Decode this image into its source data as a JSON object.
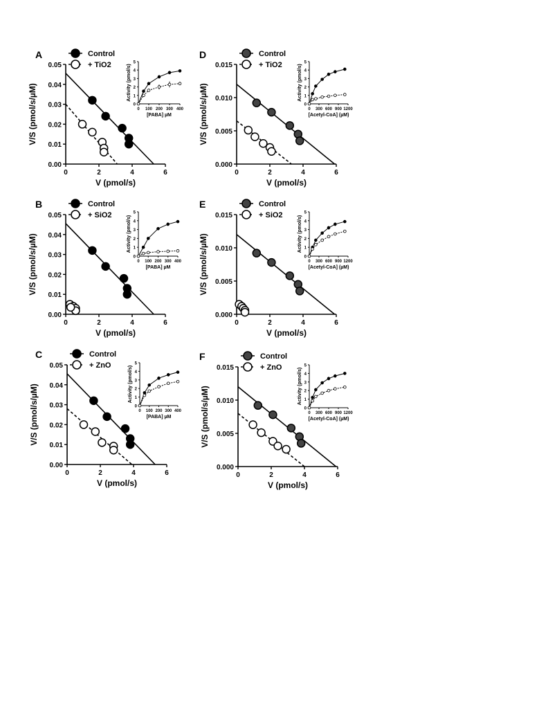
{
  "chart_data": [
    {
      "panel": "A",
      "type": "scatter",
      "xlabel": "V (pmol/s)",
      "ylabel": "V/S (pmol/s/µM)",
      "xlim": [
        0,
        6
      ],
      "ylim": [
        0,
        0.05
      ],
      "xticks": [
        "0",
        "2",
        "4",
        "6"
      ],
      "yticks": [
        "0.00",
        "0.01",
        "0.02",
        "0.03",
        "0.04",
        "0.05"
      ],
      "legend": [
        "Control",
        "+ TiO2"
      ],
      "marker_color": "#000000",
      "series": [
        {
          "name": "Control",
          "points": [
            [
              1.6,
              0.032
            ],
            [
              2.4,
              0.024
            ],
            [
              3.4,
              0.018
            ],
            [
              3.8,
              0.013
            ],
            [
              3.8,
              0.01
            ]
          ],
          "line": [
            [
              0,
              0.0455
            ],
            [
              5.3,
              0
            ]
          ],
          "dashed": false
        },
        {
          "name": "+ TiO2",
          "points": [
            [
              1.0,
              0.02
            ],
            [
              1.6,
              0.016
            ],
            [
              2.2,
              0.011
            ],
            [
              2.3,
              0.008
            ],
            [
              2.3,
              0.006
            ]
          ],
          "line": [
            [
              0,
              0.03
            ],
            [
              3.1,
              0
            ]
          ],
          "dashed": true
        }
      ],
      "inset": {
        "xlabel": "[PABA] µM",
        "ylabel": "Activity (pmol/s)",
        "xlim": [
          0,
          400
        ],
        "ylim": [
          0,
          5
        ],
        "xticks": [
          "0",
          "100",
          "200",
          "300",
          "400"
        ],
        "yticks": [
          "0",
          "1",
          "2",
          "3",
          "4",
          "5"
        ],
        "series": [
          {
            "x": [
              0,
              50,
              100,
              200,
              300,
              400
            ],
            "y": [
              0,
              1.5,
              2.4,
              3.2,
              3.7,
              3.9
            ],
            "filled": true,
            "errors": [
              0,
              0.1,
              0.15,
              0.2,
              0.2,
              0.15
            ]
          },
          {
            "x": [
              0,
              50,
              100,
              200,
              300,
              400
            ],
            "y": [
              0,
              1.0,
              1.6,
              2.0,
              2.3,
              2.4
            ],
            "filled": false,
            "errors": [
              0,
              0.1,
              0.15,
              0.3,
              0.35,
              0.2
            ]
          }
        ]
      }
    },
    {
      "panel": "B",
      "type": "scatter",
      "xlabel": "V (pmol/s)",
      "ylabel": "V/S (pmol/s/µM)",
      "xlim": [
        0,
        6
      ],
      "ylim": [
        0,
        0.05
      ],
      "xticks": [
        "0",
        "2",
        "4",
        "6"
      ],
      "yticks": [
        "0.00",
        "0.01",
        "0.02",
        "0.03",
        "0.04",
        "0.05"
      ],
      "legend": [
        "Control",
        "+ SiO2"
      ],
      "marker_color": "#000000",
      "series": [
        {
          "name": "Control",
          "points": [
            [
              1.6,
              0.032
            ],
            [
              2.4,
              0.024
            ],
            [
              3.5,
              0.018
            ],
            [
              3.7,
              0.013
            ],
            [
              3.7,
              0.01
            ]
          ],
          "line": [
            [
              0,
              0.0455
            ],
            [
              5.3,
              0
            ]
          ],
          "dashed": false
        },
        {
          "name": "+ SiO2",
          "points": [
            [
              0.25,
              0.005
            ],
            [
              0.45,
              0.004
            ],
            [
              0.6,
              0.003
            ],
            [
              0.6,
              0.0018
            ],
            [
              0.3,
              0.0035
            ]
          ],
          "line": null,
          "dashed": true
        }
      ],
      "inset": {
        "xlabel": "[PABA] µM",
        "ylabel": "Activity (pmol/s)",
        "xlim": [
          0,
          400
        ],
        "ylim": [
          0,
          5
        ],
        "xticks": [
          "0",
          "100",
          "200",
          "300",
          "400"
        ],
        "yticks": [
          "0",
          "1",
          "2",
          "3",
          "4",
          "5"
        ],
        "series": [
          {
            "x": [
              0,
              50,
              100,
              200,
              300,
              400
            ],
            "y": [
              0,
              1.0,
              2.0,
              3.1,
              3.6,
              3.9
            ],
            "filled": true,
            "errors": [
              0,
              0.1,
              0.1,
              0.15,
              0.2,
              0.15
            ]
          },
          {
            "x": [
              0,
              50,
              100,
              200,
              300,
              400
            ],
            "y": [
              0,
              0.3,
              0.4,
              0.5,
              0.55,
              0.6
            ],
            "filled": false,
            "errors": [
              0,
              0.05,
              0.05,
              0.05,
              0.05,
              0.05
            ]
          }
        ]
      }
    },
    {
      "panel": "C",
      "type": "scatter",
      "xlabel": "V (pmol/s)",
      "ylabel": "V/S (pmol/s/µM)",
      "xlim": [
        0,
        6
      ],
      "ylim": [
        0,
        0.05
      ],
      "xticks": [
        "0",
        "2",
        "4",
        "6"
      ],
      "yticks": [
        "0.00",
        "0.01",
        "0.02",
        "0.03",
        "0.04",
        "0.05"
      ],
      "legend": [
        "Control",
        "+ ZnO"
      ],
      "marker_color": "#000000",
      "series": [
        {
          "name": "Control",
          "points": [
            [
              1.6,
              0.032
            ],
            [
              2.4,
              0.024
            ],
            [
              3.5,
              0.018
            ],
            [
              3.8,
              0.013
            ],
            [
              3.8,
              0.01
            ]
          ],
          "line": [
            [
              0,
              0.0455
            ],
            [
              5.3,
              0
            ]
          ],
          "dashed": false
        },
        {
          "name": "+ ZnO",
          "points": [
            [
              1.0,
              0.02
            ],
            [
              1.7,
              0.0165
            ],
            [
              2.1,
              0.011
            ],
            [
              2.8,
              0.0092
            ],
            [
              2.8,
              0.0072
            ]
          ],
          "line": [
            [
              0,
              0.028
            ],
            [
              3.9,
              0
            ]
          ],
          "dashed": true
        }
      ],
      "inset": {
        "xlabel": "[PABA] µM",
        "ylabel": "Activity (pmol/s)",
        "xlim": [
          0,
          400
        ],
        "ylim": [
          0,
          5
        ],
        "xticks": [
          "0",
          "100",
          "200",
          "300",
          "400"
        ],
        "yticks": [
          "0",
          "1",
          "2",
          "3",
          "4",
          "5"
        ],
        "series": [
          {
            "x": [
              0,
              50,
              100,
              200,
              300,
              400
            ],
            "y": [
              0,
              1.5,
              2.4,
              3.2,
              3.6,
              3.9
            ],
            "filled": true,
            "errors": [
              0,
              0.1,
              0.15,
              0.2,
              0.2,
              0.15
            ]
          },
          {
            "x": [
              0,
              50,
              100,
              200,
              300,
              400
            ],
            "y": [
              0,
              1.2,
              1.7,
              2.2,
              2.6,
              2.8
            ],
            "filled": false,
            "errors": [
              0,
              0.1,
              0.1,
              0.15,
              0.15,
              0.1
            ]
          }
        ]
      }
    },
    {
      "panel": "D",
      "type": "scatter",
      "xlabel": "V (pmol/s)",
      "ylabel": "V/S (pmol/s/µM)",
      "xlim": [
        0,
        6
      ],
      "ylim": [
        0,
        0.015
      ],
      "xticks": [
        "0",
        "2",
        "4",
        "6"
      ],
      "yticks": [
        "0.000",
        "0.005",
        "0.010",
        "0.015"
      ],
      "legend": [
        "Control",
        "+ TiO2"
      ],
      "marker_color": "#444444",
      "series": [
        {
          "name": "Control",
          "points": [
            [
              1.2,
              0.0092
            ],
            [
              2.1,
              0.0078
            ],
            [
              3.2,
              0.0058
            ],
            [
              3.7,
              0.0045
            ],
            [
              3.8,
              0.0035
            ]
          ],
          "line": [
            [
              0,
              0.012
            ],
            [
              5.9,
              0
            ]
          ],
          "dashed": false
        },
        {
          "name": "+ TiO2",
          "points": [
            [
              0.7,
              0.0051
            ],
            [
              1.1,
              0.0041
            ],
            [
              1.6,
              0.0031
            ],
            [
              2.0,
              0.0025
            ],
            [
              2.1,
              0.0019
            ]
          ],
          "line": [
            [
              0,
              0.0065
            ],
            [
              3.3,
              0
            ]
          ],
          "dashed": true
        }
      ],
      "inset": {
        "xlabel": "[Acetyl-CoA] (µM)",
        "ylabel": "Activity (pmol/s)",
        "xlim": [
          0,
          1200
        ],
        "ylim": [
          0,
          5
        ],
        "xticks": [
          "0",
          "300",
          "600",
          "900",
          "1200"
        ],
        "yticks": [
          "0",
          "1",
          "2",
          "3",
          "4",
          "5"
        ],
        "series": [
          {
            "x": [
              0,
              100,
              200,
              400,
              600,
              800,
              1100
            ],
            "y": [
              0,
              1.2,
              2.1,
              2.9,
              3.5,
              3.8,
              4.1
            ],
            "filled": true,
            "errors": [
              0,
              0.1,
              0.1,
              0.15,
              0.2,
              0.2,
              0.1
            ]
          },
          {
            "x": [
              0,
              100,
              200,
              400,
              600,
              800,
              1100
            ],
            "y": [
              0,
              0.5,
              0.6,
              0.8,
              0.9,
              1.0,
              1.1
            ],
            "filled": false,
            "errors": [
              0,
              0.05,
              0.05,
              0.05,
              0.05,
              0.05,
              0.05
            ]
          }
        ]
      }
    },
    {
      "panel": "E",
      "type": "scatter",
      "xlabel": "V (pmol/s)",
      "ylabel": "V/S (pmol/s/µM)",
      "xlim": [
        0,
        6
      ],
      "ylim": [
        0,
        0.015
      ],
      "xticks": [
        "0",
        "2",
        "4",
        "6"
      ],
      "yticks": [
        "0.000",
        "0.005",
        "0.010",
        "0.015"
      ],
      "legend": [
        "Control",
        "+ SiO2"
      ],
      "marker_color": "#444444",
      "series": [
        {
          "name": "Control",
          "points": [
            [
              1.2,
              0.0092
            ],
            [
              2.1,
              0.0078
            ],
            [
              3.2,
              0.0058
            ],
            [
              3.7,
              0.0045
            ],
            [
              3.8,
              0.0035
            ]
          ],
          "line": [
            [
              0,
              0.012
            ],
            [
              5.9,
              0
            ]
          ],
          "dashed": false
        },
        {
          "name": "+ SiO2",
          "points": [
            [
              0.15,
              0.0015
            ],
            [
              0.3,
              0.0012
            ],
            [
              0.4,
              0.0009
            ],
            [
              0.5,
              0.0006
            ],
            [
              0.5,
              0.0003
            ]
          ],
          "line": [
            [
              0,
              0.002
            ],
            [
              0.7,
              0
            ]
          ],
          "dashed": true
        }
      ],
      "inset": {
        "xlabel": "[Acetyl-CoA] (µM)",
        "ylabel": "Activity (pmol/s)",
        "xlim": [
          0,
          1200
        ],
        "ylim": [
          0,
          5
        ],
        "xticks": [
          "0",
          "300",
          "600",
          "900",
          "1200"
        ],
        "yticks": [
          "0",
          "1",
          "2",
          "3",
          "4",
          "5"
        ],
        "series": [
          {
            "x": [
              0,
              100,
              200,
              400,
              600,
              800,
              1100
            ],
            "y": [
              0,
              1.0,
              1.8,
              2.6,
              3.2,
              3.6,
              3.9
            ],
            "filled": true,
            "errors": [
              0,
              0.1,
              0.1,
              0.15,
              0.2,
              0.2,
              0.1
            ]
          },
          {
            "x": [
              0,
              100,
              200,
              400,
              600,
              800,
              1100
            ],
            "y": [
              0,
              0.8,
              1.3,
              1.8,
              2.2,
              2.5,
              2.8
            ],
            "filled": false,
            "errors": [
              0,
              0.1,
              0.1,
              0.1,
              0.1,
              0.1,
              0.1
            ]
          }
        ]
      }
    },
    {
      "panel": "F",
      "type": "scatter",
      "xlabel": "V (pmol/s)",
      "ylabel": "V/S (pmol/s/µM)",
      "xlim": [
        0,
        6
      ],
      "ylim": [
        0,
        0.015
      ],
      "xticks": [
        "0",
        "2",
        "4",
        "6"
      ],
      "yticks": [
        "0.000",
        "0.005",
        "0.010",
        "0.015"
      ],
      "legend": [
        "Control",
        "+ ZnO"
      ],
      "marker_color": "#444444",
      "series": [
        {
          "name": "Control",
          "points": [
            [
              1.2,
              0.0092
            ],
            [
              2.1,
              0.0078
            ],
            [
              3.2,
              0.0058
            ],
            [
              3.7,
              0.0045
            ],
            [
              3.8,
              0.0035
            ]
          ],
          "line": [
            [
              0,
              0.012
            ],
            [
              5.9,
              0
            ]
          ],
          "dashed": false
        },
        {
          "name": "+ ZnO",
          "points": [
            [
              0.9,
              0.0063
            ],
            [
              1.4,
              0.0051
            ],
            [
              2.1,
              0.0038
            ],
            [
              2.4,
              0.0031
            ],
            [
              2.9,
              0.0026
            ]
          ],
          "line": [
            [
              0,
              0.008
            ],
            [
              4.0,
              0
            ]
          ],
          "dashed": true
        }
      ],
      "inset": {
        "xlabel": "[Acetyl-CoA] (µM)",
        "ylabel": "Activity (pmol/s)",
        "xlim": [
          0,
          1200
        ],
        "ylim": [
          0,
          5
        ],
        "xticks": [
          "0",
          "300",
          "600",
          "900",
          "1200"
        ],
        "yticks": [
          "0",
          "1",
          "2",
          "3",
          "4",
          "5"
        ],
        "series": [
          {
            "x": [
              0,
              100,
              200,
              400,
              600,
              800,
              1100
            ],
            "y": [
              0,
              1.2,
              2.1,
              2.9,
              3.4,
              3.7,
              4.0
            ],
            "filled": true,
            "errors": [
              0,
              0.1,
              0.1,
              0.15,
              0.2,
              0.2,
              0.1
            ]
          },
          {
            "x": [
              0,
              100,
              200,
              400,
              600,
              800,
              1100
            ],
            "y": [
              0,
              0.8,
              1.3,
              1.7,
              2.0,
              2.2,
              2.4
            ],
            "filled": false,
            "errors": [
              0,
              0.1,
              0.1,
              0.1,
              0.1,
              0.1,
              0.1
            ]
          }
        ]
      }
    }
  ]
}
